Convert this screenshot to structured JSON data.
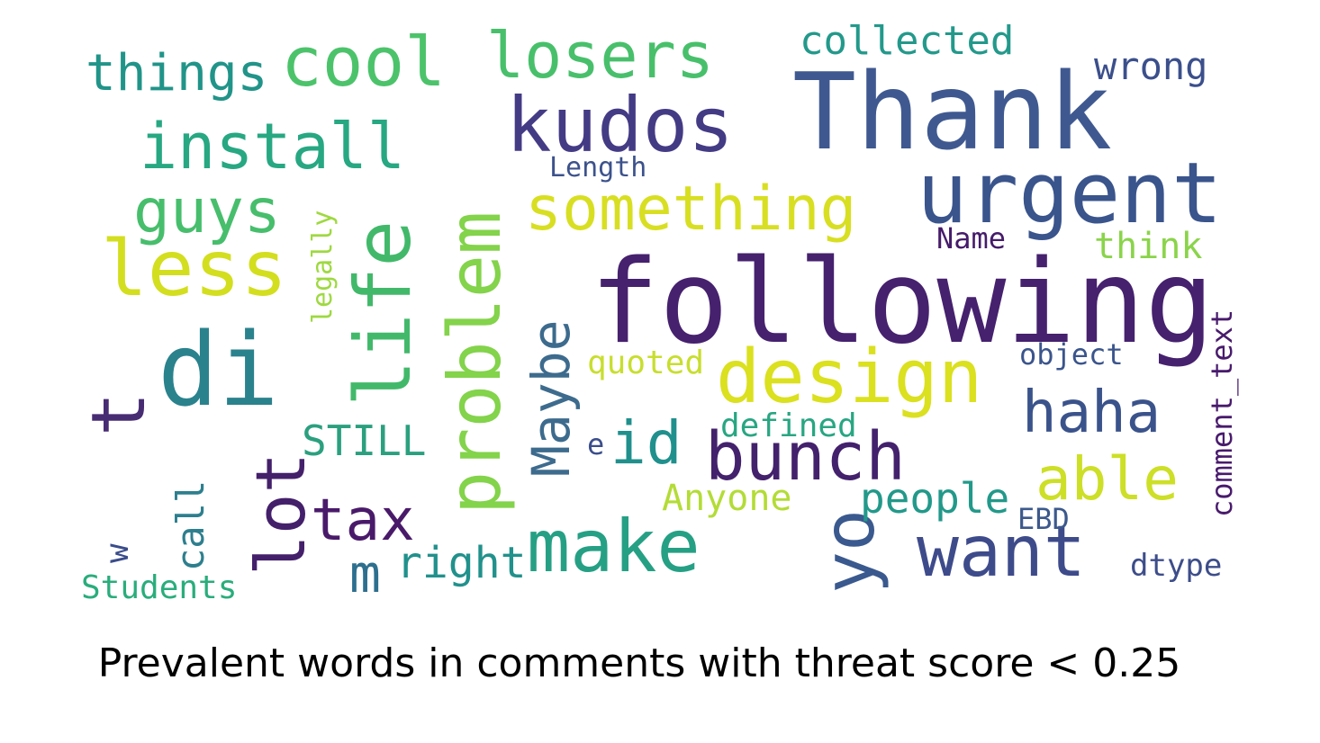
{
  "chart_data": {
    "type": "wordcloud",
    "title": "Prevalent words in comments with threat score < 0.25",
    "colormap": "viridis",
    "background": "#ffffff",
    "words": [
      {
        "text": "following",
        "color": "#46216e"
      },
      {
        "text": "Thank",
        "color": "#3f5990"
      },
      {
        "text": "urgent",
        "color": "#3a548c"
      },
      {
        "text": "kudos",
        "color": "#443b85"
      },
      {
        "text": "design",
        "color": "#dbe01f"
      },
      {
        "text": "problem",
        "color": "#83d34b"
      },
      {
        "text": "life",
        "color": "#42b96a"
      },
      {
        "text": "di",
        "color": "#2a828d"
      },
      {
        "text": "yo",
        "color": "#3a598e"
      },
      {
        "text": "want",
        "color": "#3e4b8b"
      },
      {
        "text": "make",
        "color": "#26a084"
      },
      {
        "text": "bunch",
        "color": "#43216c"
      },
      {
        "text": "something",
        "color": "#d8df22"
      },
      {
        "text": "cool",
        "color": "#4cc36b"
      },
      {
        "text": "losers",
        "color": "#48c06b"
      },
      {
        "text": "install",
        "color": "#27a882"
      },
      {
        "text": "less",
        "color": "#d3de1f"
      },
      {
        "text": "guys",
        "color": "#47be6c"
      },
      {
        "text": "lot",
        "color": "#44206b"
      },
      {
        "text": "tax",
        "color": "#4a1a6a"
      },
      {
        "text": "haha",
        "color": "#3b538b"
      },
      {
        "text": "able",
        "color": "#cddf27"
      },
      {
        "text": "Maybe",
        "color": "#3d6b8d"
      },
      {
        "text": "id",
        "color": "#20908d"
      },
      {
        "text": "t",
        "color": "#482c73"
      },
      {
        "text": "m",
        "color": "#2d6f8e"
      },
      {
        "text": "things",
        "color": "#219489"
      },
      {
        "text": "collected",
        "color": "#23998b"
      },
      {
        "text": "wrong",
        "color": "#3b4f8c"
      },
      {
        "text": "think",
        "color": "#8ad44a"
      },
      {
        "text": "Name",
        "color": "#451b6a"
      },
      {
        "text": "Length",
        "color": "#3c528c"
      },
      {
        "text": "legally",
        "color": "#9ed940"
      },
      {
        "text": "STILL",
        "color": "#2ba07e"
      },
      {
        "text": "quoted",
        "color": "#c8de2e"
      },
      {
        "text": "defined",
        "color": "#28a682"
      },
      {
        "text": "object",
        "color": "#3b558c"
      },
      {
        "text": "comment_text",
        "color": "#481a6c"
      },
      {
        "text": "e",
        "color": "#3b4e8c"
      },
      {
        "text": "Anyone",
        "color": "#b3dc36"
      },
      {
        "text": "people",
        "color": "#22998a"
      },
      {
        "text": "EBD",
        "color": "#3c598c"
      },
      {
        "text": "right",
        "color": "#21918c"
      },
      {
        "text": "call",
        "color": "#2d7f8e"
      },
      {
        "text": "w",
        "color": "#3a4c8a"
      },
      {
        "text": "Students",
        "color": "#29ad7c"
      },
      {
        "text": "dtype",
        "color": "#3d4d8a"
      }
    ]
  }
}
